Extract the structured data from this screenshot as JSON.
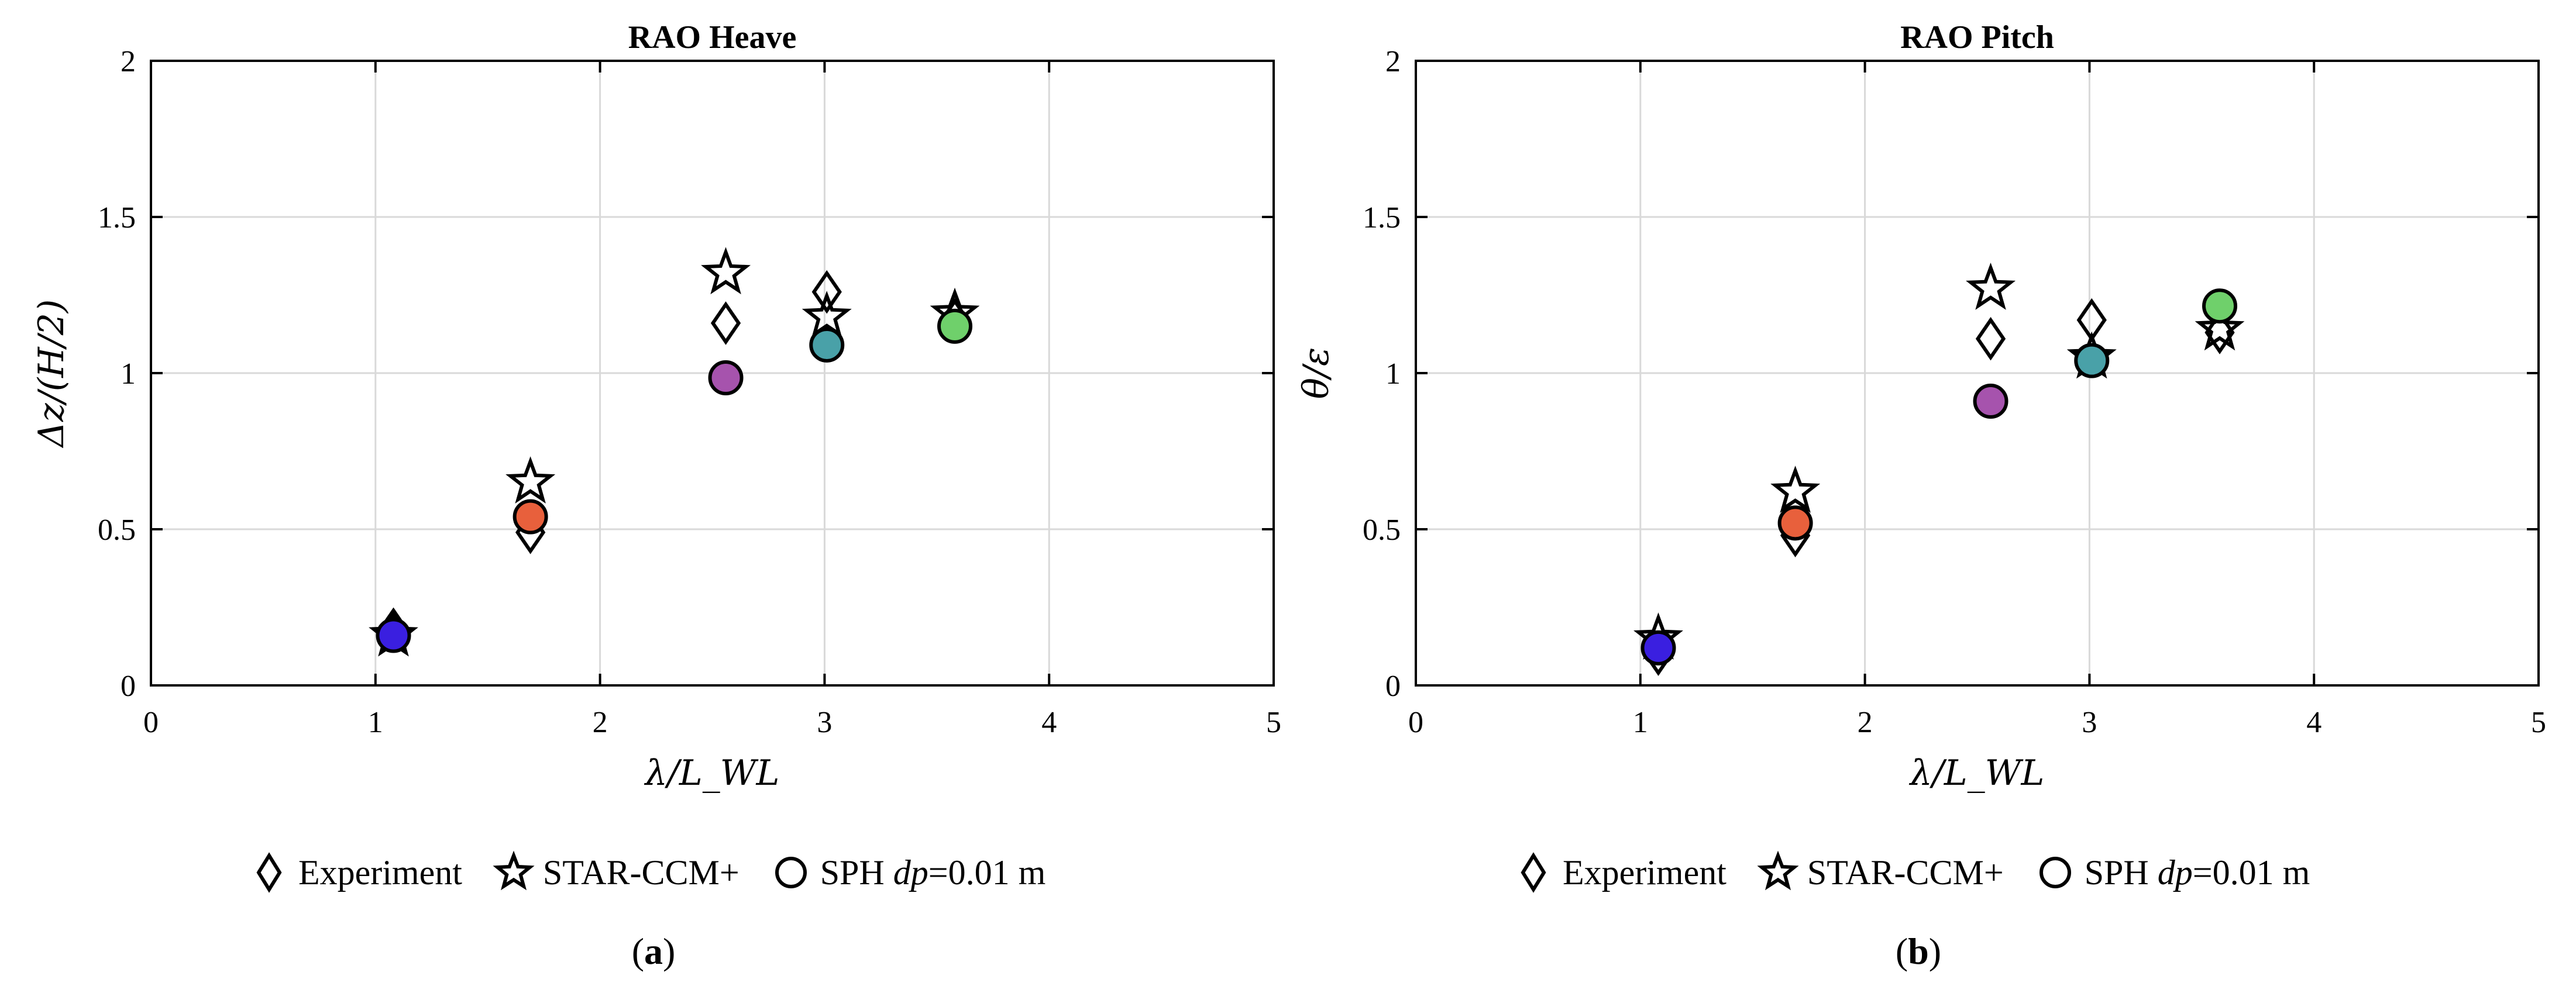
{
  "chart_data": [
    {
      "type": "scatter",
      "title": "RAO Heave",
      "xlabel": "λ/L_WL",
      "ylabel": "Δz/(H/2)",
      "xlim": [
        0,
        5
      ],
      "ylim": [
        0,
        2
      ],
      "xticks": [
        0,
        1,
        2,
        3,
        4,
        5
      ],
      "yticks": [
        0,
        0.5,
        1,
        1.5,
        2
      ],
      "xtick_labels": [
        "0",
        "1",
        "2",
        "3",
        "4",
        "5"
      ],
      "ytick_labels": [
        "0",
        "0.5",
        "1",
        "1.5",
        "2"
      ],
      "grid": true,
      "series": [
        {
          "name": "Experiment",
          "marker": "diamond",
          "x": [
            1.08,
            1.69,
            2.56,
            3.01,
            3.58
          ],
          "y": [
            0.18,
            0.49,
            1.16,
            1.26,
            1.17
          ]
        },
        {
          "name": "STAR-CCM+",
          "marker": "star",
          "x": [
            1.08,
            1.69,
            2.56,
            3.01,
            3.58
          ],
          "y": [
            0.16,
            0.65,
            1.32,
            1.18,
            1.19
          ]
        },
        {
          "name": "SPH dp=0.01 m",
          "marker": "circle",
          "x": [
            1.08,
            1.69,
            2.56,
            3.01,
            3.58
          ],
          "y": [
            0.16,
            0.54,
            0.985,
            1.09,
            1.15
          ],
          "colors": [
            "#3a1fe0",
            "#e8603c",
            "#a653ad",
            "#49a1a8",
            "#6fd06b"
          ]
        }
      ]
    },
    {
      "type": "scatter",
      "title": "RAO Pitch",
      "xlabel": "λ/L_WL",
      "ylabel": "θ/ε",
      "xlim": [
        0,
        5
      ],
      "ylim": [
        0,
        2
      ],
      "xticks": [
        0,
        1,
        2,
        3,
        4,
        5
      ],
      "yticks": [
        0,
        0.5,
        1,
        1.5,
        2
      ],
      "xtick_labels": [
        "0",
        "1",
        "2",
        "3",
        "4",
        "5"
      ],
      "ytick_labels": [
        "0",
        "0.5",
        "1",
        "1.5",
        "2"
      ],
      "grid": true,
      "series": [
        {
          "name": "Experiment",
          "marker": "diamond",
          "x": [
            1.08,
            1.69,
            2.56,
            3.01,
            3.58
          ],
          "y": [
            0.1,
            0.48,
            1.11,
            1.17,
            1.13
          ]
        },
        {
          "name": "STAR-CCM+",
          "marker": "star",
          "x": [
            1.08,
            1.69,
            2.56,
            3.01,
            3.58
          ],
          "y": [
            0.15,
            0.62,
            1.27,
            1.05,
            1.14
          ]
        },
        {
          "name": "SPH dp=0.01 m",
          "marker": "circle",
          "x": [
            1.08,
            1.69,
            2.56,
            3.01,
            3.58
          ],
          "y": [
            0.12,
            0.52,
            0.91,
            1.04,
            1.215
          ],
          "colors": [
            "#3a1fe0",
            "#e8603c",
            "#a653ad",
            "#49a1a8",
            "#6fd06b"
          ]
        }
      ]
    }
  ],
  "legend": {
    "experiment": "Experiment",
    "star": "STAR-CCM+",
    "sph_prefix": "SPH ",
    "sph_dp": "dp",
    "sph_suffix": "=0.01 m"
  },
  "captions": {
    "a": "a",
    "b": "b"
  }
}
